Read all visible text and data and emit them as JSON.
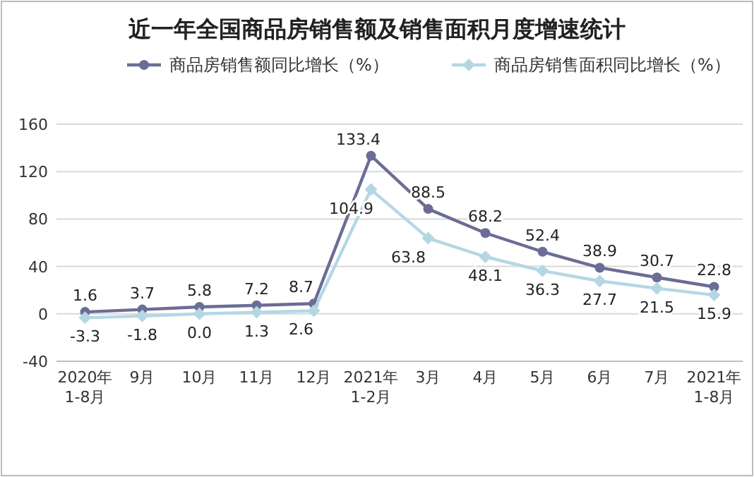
{
  "chart_data": {
    "type": "line",
    "title": "近一年全国商品房销售额及销售面积月度增速统计",
    "categories": [
      "2020年\n1-8月",
      "9月",
      "10月",
      "11月",
      "12月",
      "2021年\n1-2月",
      "3月",
      "4月",
      "5月",
      "6月",
      "7月",
      "2021年\n1-8月"
    ],
    "series": [
      {
        "name": "商品房销售额同比增长（%）",
        "color": "#6b6d96",
        "marker": "circle",
        "values": [
          1.6,
          3.7,
          5.8,
          7.2,
          8.7,
          133.4,
          88.5,
          68.2,
          52.4,
          38.9,
          30.7,
          22.8
        ],
        "value_labels": [
          "1.6",
          "3.7",
          "5.8",
          "7.2",
          "8.7",
          "133.4",
          "88.5",
          "68.2",
          "52.4",
          "38.9",
          "30.7",
          "22.8"
        ]
      },
      {
        "name": "商品房销售面积同比增长（%）",
        "color": "#b4d7e4",
        "marker": "diamond",
        "values": [
          -3.3,
          -1.8,
          0.0,
          1.3,
          2.6,
          104.9,
          63.8,
          48.1,
          36.3,
          27.7,
          21.5,
          15.9
        ],
        "value_labels": [
          "-3.3",
          "-1.8",
          "0.0",
          "1.3",
          "2.6",
          "104.9",
          "63.8",
          "48.1",
          "36.3",
          "27.7",
          "21.5",
          "15.9"
        ]
      }
    ],
    "ylim": [
      -40,
      160
    ],
    "yticks": [
      -40,
      0,
      40,
      80,
      120,
      160
    ],
    "grid": "y",
    "legend": "top"
  }
}
